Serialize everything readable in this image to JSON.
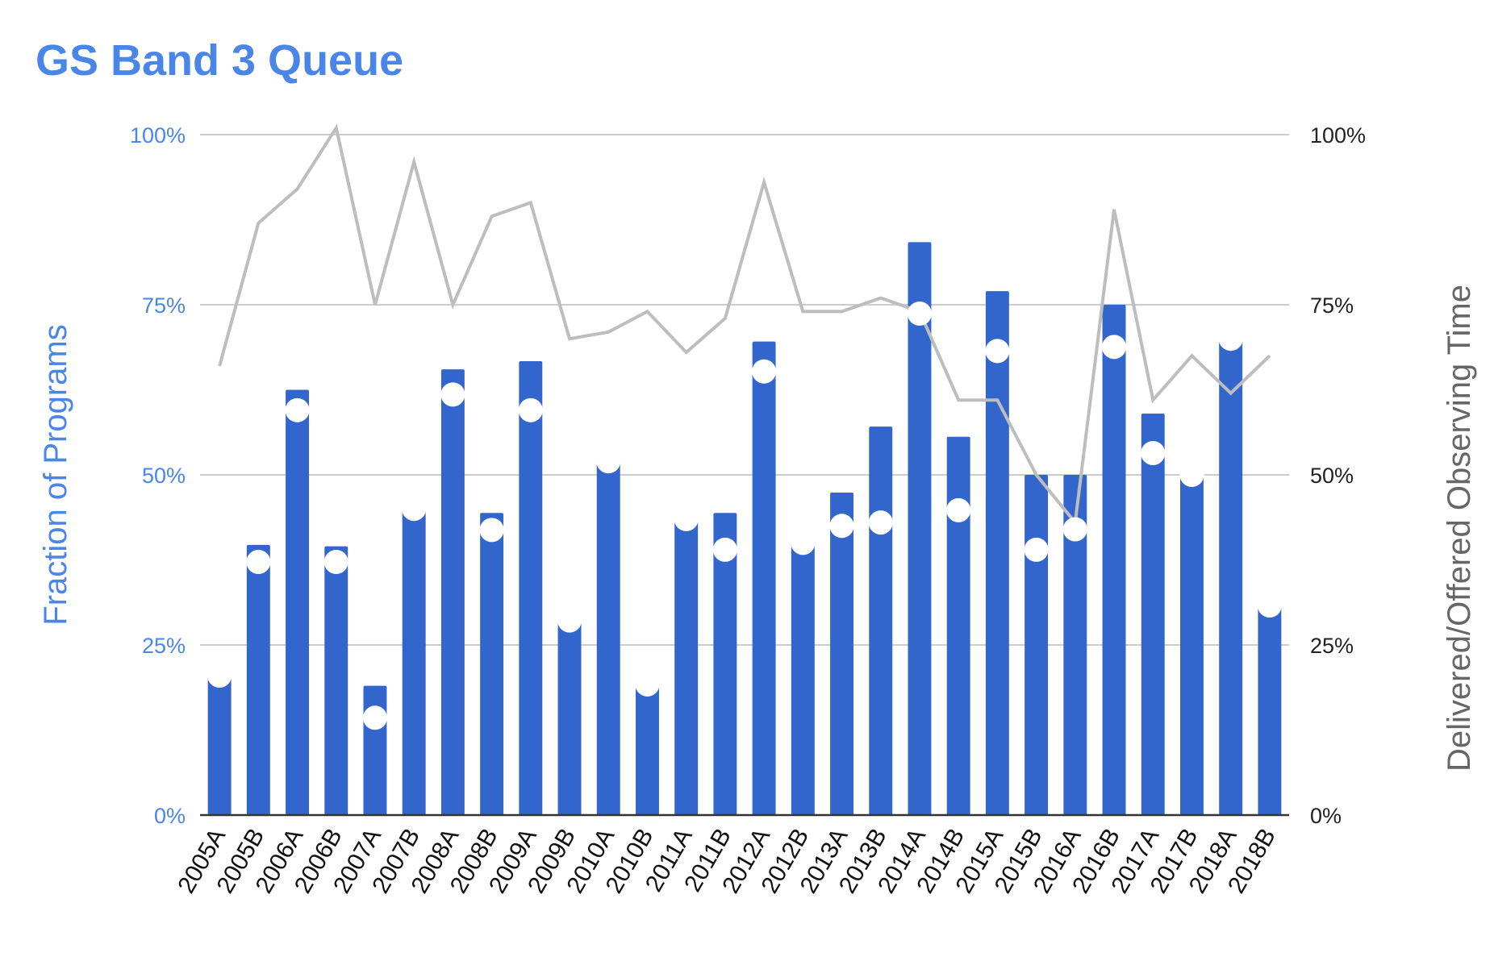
{
  "chart_data": {
    "type": "bar",
    "title": "GS Band 3 Queue",
    "ylabel": "Fraction of Programs",
    "y2label": "Delivered/Offered Observing Time",
    "ylim": [
      0,
      100
    ],
    "y2lim": [
      0,
      100
    ],
    "yticks": [
      "0%",
      "25%",
      "50%",
      "75%",
      "100%"
    ],
    "y2ticks": [
      "0%",
      "25%",
      "50%",
      "75%",
      "100%"
    ],
    "grid": true,
    "categories": [
      "2005A",
      "2005B",
      "2006A",
      "2006B",
      "2007A",
      "2007B",
      "2008A",
      "2008B",
      "2009A",
      "2009B",
      "2010A",
      "2010B",
      "2011A",
      "2011B",
      "2012A",
      "2012B",
      "2013A",
      "2013B",
      "2014A",
      "2014B",
      "2015A",
      "2015B",
      "2016A",
      "2016B",
      "2017A",
      "2017B",
      "2018A",
      "2018B"
    ],
    "series": [
      {
        "kind": "bar",
        "axis": "left",
        "color": "#3366cc",
        "values": [
          20.5,
          39.7,
          62.5,
          39.5,
          19,
          45,
          65.5,
          44.4,
          66.7,
          28.6,
          52,
          19.2,
          43.5,
          44.4,
          69.6,
          40,
          47.4,
          57.1,
          84.2,
          55.6,
          77,
          50,
          50,
          75,
          59,
          50,
          70,
          30.8
        ]
      },
      {
        "kind": "dot",
        "axis": "left",
        "color": "#ffffff",
        "values": [
          20.5,
          37.2,
          59.5,
          37.2,
          14.3,
          45,
          61.8,
          41.9,
          59.5,
          28.6,
          52,
          19.2,
          43.5,
          39,
          65.2,
          40,
          42.5,
          43,
          73.7,
          44.8,
          68.2,
          39,
          42,
          68.8,
          53.2,
          50,
          70,
          30.8
        ]
      },
      {
        "kind": "line",
        "axis": "right",
        "color": "#bdbdbd",
        "values": [
          66,
          87,
          92,
          101,
          75,
          96,
          75,
          88,
          90,
          70,
          71,
          74,
          68,
          73,
          93,
          74,
          74,
          76,
          74,
          61,
          61,
          50,
          43,
          89,
          61,
          67.5,
          62,
          67.5
        ]
      }
    ]
  }
}
